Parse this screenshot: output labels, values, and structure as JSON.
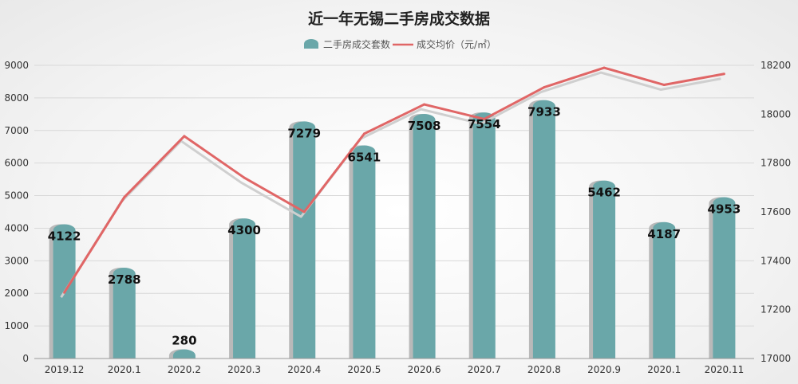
{
  "chart_data": {
    "type": "bar",
    "title": "近一年无锡二手房成交数据",
    "categories": [
      "2019.12",
      "2020.1",
      "2020.2",
      "2020.3",
      "2020.4",
      "2020.5",
      "2020.6",
      "2020.7",
      "2020.8",
      "2020.9",
      "2020.1",
      "2020.11"
    ],
    "series": [
      {
        "name": "二手房成交套数",
        "type": "bar",
        "axis": "left",
        "values": [
          4122,
          2788,
          280,
          4300,
          7279,
          6541,
          7508,
          7554,
          7933,
          5462,
          4187,
          4953
        ]
      },
      {
        "name": "成交均价（元/㎡）",
        "type": "line",
        "axis": "right",
        "values": [
          17270,
          17660,
          17910,
          17740,
          17600,
          17920,
          18040,
          17980,
          18110,
          18190,
          18120,
          18165
        ]
      }
    ],
    "y_left": {
      "range": [
        0,
        9000
      ],
      "ticks": [
        0,
        1000,
        2000,
        3000,
        4000,
        5000,
        6000,
        7000,
        8000,
        9000
      ]
    },
    "y_right": {
      "range": [
        17000,
        18200
      ],
      "ticks": [
        17000,
        17200,
        17400,
        17600,
        17800,
        18000,
        18200
      ]
    },
    "grid": true,
    "legend_position": "top-center",
    "colors": {
      "bar": "#6aa7a9",
      "bar_shadow": "#b9b9b9",
      "line": "#e06666",
      "line_shadow": "#cfcfcf",
      "grid": "#d8d8d8"
    }
  }
}
